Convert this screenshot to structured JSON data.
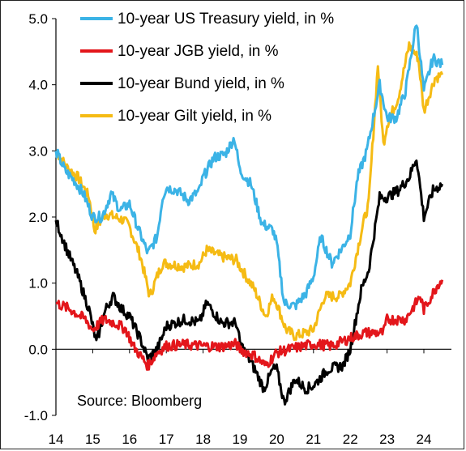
{
  "chart_data": {
    "type": "line",
    "source_note": "Source: Bloomberg",
    "xlim": [
      2014,
      2024.7
    ],
    "ylim": [
      -1.0,
      5.0
    ],
    "x_ticks": [
      "14",
      "15",
      "16",
      "17",
      "18",
      "19",
      "20",
      "21",
      "22",
      "23",
      "24"
    ],
    "y_ticks": [
      "-1.0",
      "0.0",
      "1.0",
      "2.0",
      "3.0",
      "4.0",
      "5.0"
    ],
    "legend_position": "top-left",
    "grid": false,
    "series": [
      {
        "name": "10-year US Treasury yield, in %",
        "color": "#3bb3e6",
        "points": [
          [
            2014.0,
            3.0
          ],
          [
            2014.25,
            2.7
          ],
          [
            2014.5,
            2.55
          ],
          [
            2014.75,
            2.35
          ],
          [
            2015.0,
            2.0
          ],
          [
            2015.25,
            2.0
          ],
          [
            2015.5,
            2.35
          ],
          [
            2015.75,
            2.1
          ],
          [
            2016.0,
            2.2
          ],
          [
            2016.25,
            1.8
          ],
          [
            2016.5,
            1.45
          ],
          [
            2016.75,
            1.7
          ],
          [
            2016.9,
            2.3
          ],
          [
            2017.0,
            2.45
          ],
          [
            2017.3,
            2.4
          ],
          [
            2017.6,
            2.25
          ],
          [
            2017.9,
            2.4
          ],
          [
            2018.0,
            2.6
          ],
          [
            2018.3,
            2.9
          ],
          [
            2018.6,
            2.95
          ],
          [
            2018.85,
            3.2
          ],
          [
            2019.0,
            2.7
          ],
          [
            2019.3,
            2.5
          ],
          [
            2019.6,
            1.9
          ],
          [
            2019.9,
            1.8
          ],
          [
            2020.0,
            1.6
          ],
          [
            2020.2,
            0.7
          ],
          [
            2020.5,
            0.65
          ],
          [
            2020.8,
            0.85
          ],
          [
            2021.0,
            1.1
          ],
          [
            2021.2,
            1.7
          ],
          [
            2021.5,
            1.3
          ],
          [
            2021.8,
            1.55
          ],
          [
            2022.0,
            1.75
          ],
          [
            2022.2,
            2.6
          ],
          [
            2022.45,
            3.0
          ],
          [
            2022.8,
            4.0
          ],
          [
            2023.0,
            3.5
          ],
          [
            2023.25,
            3.5
          ],
          [
            2023.5,
            3.9
          ],
          [
            2023.8,
            4.95
          ],
          [
            2024.0,
            3.9
          ],
          [
            2024.25,
            4.4
          ],
          [
            2024.5,
            4.3
          ]
        ]
      },
      {
        "name": "10-year JGB yield, in %",
        "color": "#e3161b",
        "points": [
          [
            2014.0,
            0.7
          ],
          [
            2014.4,
            0.6
          ],
          [
            2014.8,
            0.45
          ],
          [
            2015.0,
            0.3
          ],
          [
            2015.3,
            0.45
          ],
          [
            2015.6,
            0.4
          ],
          [
            2015.9,
            0.3
          ],
          [
            2016.1,
            0.05
          ],
          [
            2016.5,
            -0.25
          ],
          [
            2016.75,
            -0.05
          ],
          [
            2017.0,
            0.05
          ],
          [
            2017.5,
            0.07
          ],
          [
            2018.0,
            0.05
          ],
          [
            2018.5,
            0.04
          ],
          [
            2018.9,
            0.08
          ],
          [
            2019.0,
            0.0
          ],
          [
            2019.4,
            -0.1
          ],
          [
            2019.7,
            -0.25
          ],
          [
            2020.0,
            -0.05
          ],
          [
            2020.5,
            0.02
          ],
          [
            2021.0,
            0.08
          ],
          [
            2021.5,
            0.05
          ],
          [
            2022.0,
            0.17
          ],
          [
            2022.4,
            0.25
          ],
          [
            2022.9,
            0.25
          ],
          [
            2023.0,
            0.45
          ],
          [
            2023.5,
            0.45
          ],
          [
            2023.9,
            0.8
          ],
          [
            2024.0,
            0.6
          ],
          [
            2024.4,
            1.0
          ],
          [
            2024.5,
            1.05
          ]
        ]
      },
      {
        "name": "10-year Bund yield, in %",
        "color": "#000000",
        "points": [
          [
            2014.0,
            1.95
          ],
          [
            2014.3,
            1.5
          ],
          [
            2014.6,
            1.1
          ],
          [
            2014.9,
            0.6
          ],
          [
            2015.1,
            0.1
          ],
          [
            2015.35,
            0.6
          ],
          [
            2015.55,
            0.8
          ],
          [
            2015.8,
            0.6
          ],
          [
            2016.0,
            0.5
          ],
          [
            2016.3,
            0.15
          ],
          [
            2016.5,
            -0.15
          ],
          [
            2016.75,
            0.0
          ],
          [
            2016.9,
            0.2
          ],
          [
            2017.0,
            0.35
          ],
          [
            2017.5,
            0.45
          ],
          [
            2017.9,
            0.4
          ],
          [
            2018.1,
            0.7
          ],
          [
            2018.5,
            0.4
          ],
          [
            2018.9,
            0.4
          ],
          [
            2019.0,
            0.1
          ],
          [
            2019.4,
            -0.3
          ],
          [
            2019.65,
            -0.6
          ],
          [
            2019.9,
            -0.3
          ],
          [
            2020.0,
            -0.3
          ],
          [
            2020.2,
            -0.8
          ],
          [
            2020.5,
            -0.45
          ],
          [
            2020.8,
            -0.6
          ],
          [
            2021.0,
            -0.55
          ],
          [
            2021.4,
            -0.3
          ],
          [
            2021.8,
            -0.25
          ],
          [
            2022.0,
            0.0
          ],
          [
            2022.3,
            0.9
          ],
          [
            2022.5,
            1.2
          ],
          [
            2022.8,
            2.3
          ],
          [
            2023.0,
            2.3
          ],
          [
            2023.3,
            2.4
          ],
          [
            2023.6,
            2.6
          ],
          [
            2023.8,
            2.9
          ],
          [
            2024.0,
            2.0
          ],
          [
            2024.25,
            2.4
          ],
          [
            2024.5,
            2.5
          ]
        ]
      },
      {
        "name": "10-year Gilt yield, in %",
        "color": "#f5bb14",
        "points": [
          [
            2014.0,
            3.0
          ],
          [
            2014.3,
            2.75
          ],
          [
            2014.6,
            2.6
          ],
          [
            2014.9,
            2.3
          ],
          [
            2015.05,
            1.8
          ],
          [
            2015.35,
            2.05
          ],
          [
            2015.6,
            2.0
          ],
          [
            2015.85,
            1.95
          ],
          [
            2016.0,
            1.85
          ],
          [
            2016.3,
            1.4
          ],
          [
            2016.55,
            0.8
          ],
          [
            2016.75,
            1.1
          ],
          [
            2016.9,
            1.3
          ],
          [
            2017.0,
            1.3
          ],
          [
            2017.5,
            1.25
          ],
          [
            2017.9,
            1.3
          ],
          [
            2018.1,
            1.5
          ],
          [
            2018.5,
            1.4
          ],
          [
            2018.9,
            1.35
          ],
          [
            2019.0,
            1.25
          ],
          [
            2019.4,
            0.9
          ],
          [
            2019.7,
            0.5
          ],
          [
            2019.9,
            0.8
          ],
          [
            2020.0,
            0.7
          ],
          [
            2020.25,
            0.3
          ],
          [
            2020.5,
            0.2
          ],
          [
            2020.8,
            0.25
          ],
          [
            2021.0,
            0.3
          ],
          [
            2021.3,
            0.8
          ],
          [
            2021.7,
            0.8
          ],
          [
            2022.0,
            1.0
          ],
          [
            2022.35,
            1.9
          ],
          [
            2022.5,
            2.2
          ],
          [
            2022.75,
            4.3
          ],
          [
            2022.9,
            3.1
          ],
          [
            2023.0,
            3.4
          ],
          [
            2023.3,
            3.8
          ],
          [
            2023.6,
            4.6
          ],
          [
            2023.85,
            4.4
          ],
          [
            2024.0,
            3.6
          ],
          [
            2024.3,
            4.1
          ],
          [
            2024.5,
            4.15
          ]
        ]
      }
    ]
  }
}
